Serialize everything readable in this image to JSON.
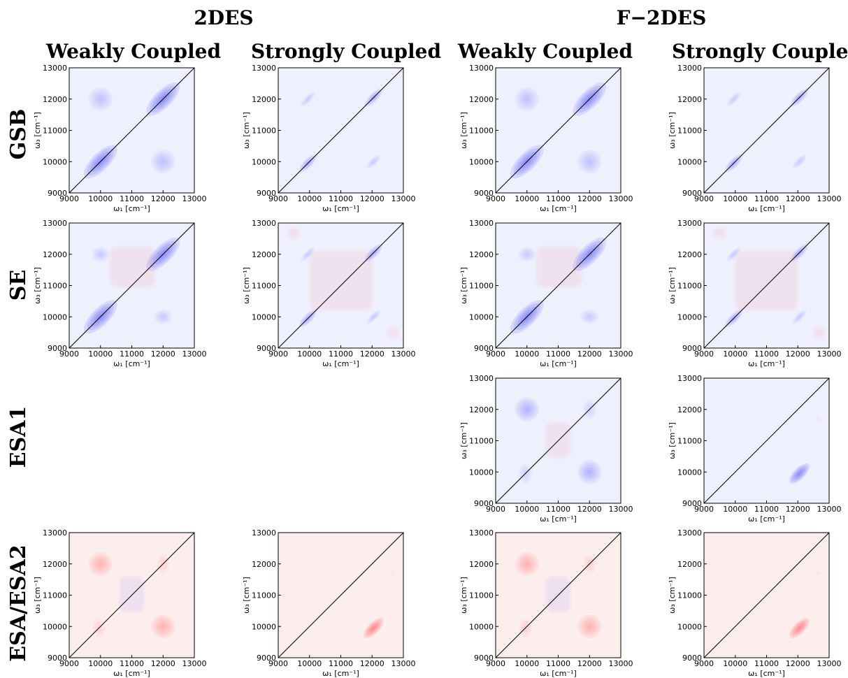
{
  "figure": {
    "group_titles": [
      "2DES",
      "F−2DES"
    ],
    "col_titles": [
      "Weakly Coupled",
      "Strongly Coupled",
      "Weakly Coupled",
      "Strongly Coupled"
    ],
    "row_titles": [
      "GSB",
      "SE",
      "ESA1",
      "ESA/ESA2"
    ],
    "colors": {
      "negative": "#3333ff",
      "positive": "#ff3333",
      "background_negative": "#eef0fd",
      "background_positive": "#fdeeee",
      "diagonal": "#000000"
    }
  },
  "chart_data": [
    {
      "type": "heatmap",
      "panel": "2DES Weakly Coupled GSB",
      "xlabel": "ω₁ [cm⁻¹]",
      "ylabel": "ω₃ [cm⁻¹]",
      "xlim": [
        9000,
        13000
      ],
      "ylim": [
        9000,
        13000
      ],
      "xticks": [
        9000,
        10000,
        11000,
        12000,
        13000
      ],
      "yticks": [
        9000,
        10000,
        11000,
        12000,
        13000
      ],
      "sign": "negative",
      "diagonal": true,
      "peaks": [
        {
          "x": 10000,
          "y": 10000,
          "rx": 700,
          "ry": 280,
          "angle": 45,
          "amp": 1.0
        },
        {
          "x": 12000,
          "y": 12000,
          "rx": 700,
          "ry": 280,
          "angle": 45,
          "amp": 1.0
        },
        {
          "x": 10000,
          "y": 12000,
          "rx": 380,
          "ry": 380,
          "angle": 0,
          "amp": 0.35
        },
        {
          "x": 12000,
          "y": 10000,
          "rx": 380,
          "ry": 380,
          "angle": 0,
          "amp": 0.35
        }
      ]
    },
    {
      "type": "heatmap",
      "panel": "2DES Strongly Coupled GSB",
      "xlabel": "ω₁ [cm⁻¹]",
      "ylabel": "ω₃ [cm⁻¹]",
      "xlim": [
        9000,
        13000
      ],
      "ylim": [
        9000,
        13000
      ],
      "xticks": [
        9000,
        10000,
        11000,
        12000,
        13000
      ],
      "yticks": [
        9000,
        10000,
        11000,
        12000,
        13000
      ],
      "sign": "negative",
      "diagonal": true,
      "peaks": [
        {
          "x": 9950,
          "y": 9950,
          "rx": 380,
          "ry": 140,
          "angle": 45,
          "amp": 0.6
        },
        {
          "x": 12050,
          "y": 12050,
          "rx": 380,
          "ry": 140,
          "angle": 45,
          "amp": 0.6
        },
        {
          "x": 9950,
          "y": 12000,
          "rx": 300,
          "ry": 110,
          "angle": 45,
          "amp": 0.3
        },
        {
          "x": 12050,
          "y": 10000,
          "rx": 300,
          "ry": 110,
          "angle": 45,
          "amp": 0.3
        }
      ]
    },
    {
      "type": "heatmap",
      "panel": "F-2DES Weakly Coupled GSB",
      "xlabel": "ω₁ [cm⁻¹]",
      "ylabel": "ω₃ [cm⁻¹]",
      "xlim": [
        9000,
        13000
      ],
      "ylim": [
        9000,
        13000
      ],
      "xticks": [
        9000,
        10000,
        11000,
        12000,
        13000
      ],
      "yticks": [
        9000,
        10000,
        11000,
        12000,
        13000
      ],
      "sign": "negative",
      "diagonal": true,
      "peaks": [
        {
          "x": 10000,
          "y": 10000,
          "rx": 700,
          "ry": 280,
          "angle": 45,
          "amp": 1.0
        },
        {
          "x": 12000,
          "y": 12000,
          "rx": 700,
          "ry": 280,
          "angle": 45,
          "amp": 1.0
        },
        {
          "x": 10000,
          "y": 12000,
          "rx": 380,
          "ry": 380,
          "angle": 0,
          "amp": 0.35
        },
        {
          "x": 12000,
          "y": 10000,
          "rx": 380,
          "ry": 380,
          "angle": 0,
          "amp": 0.35
        }
      ]
    },
    {
      "type": "heatmap",
      "panel": "F-2DES Strongly Coupled GSB",
      "xlabel": "ω₁ [cm⁻¹]",
      "ylabel": "ω₃ [cm⁻¹]",
      "xlim": [
        9000,
        13000
      ],
      "ylim": [
        9000,
        13000
      ],
      "xticks": [
        9000,
        10000,
        11000,
        12000,
        13000
      ],
      "yticks": [
        9000,
        10000,
        11000,
        12000,
        13000
      ],
      "sign": "negative",
      "diagonal": true,
      "peaks": [
        {
          "x": 9950,
          "y": 9950,
          "rx": 380,
          "ry": 140,
          "angle": 45,
          "amp": 0.6
        },
        {
          "x": 12050,
          "y": 12050,
          "rx": 380,
          "ry": 140,
          "angle": 45,
          "amp": 0.6
        },
        {
          "x": 9950,
          "y": 12000,
          "rx": 300,
          "ry": 110,
          "angle": 45,
          "amp": 0.3
        },
        {
          "x": 12050,
          "y": 10000,
          "rx": 300,
          "ry": 110,
          "angle": 45,
          "amp": 0.3
        }
      ]
    },
    {
      "type": "heatmap",
      "panel": "2DES Weakly Coupled SE",
      "xlabel": "ω₁ [cm⁻¹]",
      "ylabel": "ω₃ [cm⁻¹]",
      "xlim": [
        9000,
        13000
      ],
      "ylim": [
        9000,
        13000
      ],
      "xticks": [
        9000,
        10000,
        11000,
        12000,
        13000
      ],
      "yticks": [
        9000,
        10000,
        11000,
        12000,
        13000
      ],
      "sign": "negative",
      "diagonal": true,
      "peaks": [
        {
          "x": 10000,
          "y": 10000,
          "rx": 700,
          "ry": 280,
          "angle": 45,
          "amp": 1.0
        },
        {
          "x": 12000,
          "y": 12000,
          "rx": 700,
          "ry": 280,
          "angle": 45,
          "amp": 1.0
        },
        {
          "x": 10000,
          "y": 12000,
          "rx": 280,
          "ry": 230,
          "angle": 0,
          "amp": 0.3
        },
        {
          "x": 12000,
          "y": 10000,
          "rx": 280,
          "ry": 230,
          "angle": 0,
          "amp": 0.3
        }
      ],
      "positive_regions": [
        {
          "x": 10300,
          "y": 10950,
          "w": 1450,
          "h": 1300,
          "amp": 0.12
        }
      ]
    },
    {
      "type": "heatmap",
      "panel": "2DES Strongly Coupled SE",
      "xlabel": "ω₁ [cm⁻¹]",
      "ylabel": "ω₃ [cm⁻¹]",
      "xlim": [
        9000,
        13000
      ],
      "ylim": [
        9000,
        13000
      ],
      "xticks": [
        9000,
        10000,
        11000,
        12000,
        13000
      ],
      "yticks": [
        9000,
        10000,
        11000,
        12000,
        13000
      ],
      "sign": "negative",
      "diagonal": true,
      "peaks": [
        {
          "x": 9950,
          "y": 9950,
          "rx": 380,
          "ry": 140,
          "angle": 45,
          "amp": 0.6
        },
        {
          "x": 12050,
          "y": 12050,
          "rx": 380,
          "ry": 140,
          "angle": 45,
          "amp": 0.6
        },
        {
          "x": 9950,
          "y": 12000,
          "rx": 300,
          "ry": 110,
          "angle": 45,
          "amp": 0.3
        },
        {
          "x": 12050,
          "y": 10000,
          "rx": 300,
          "ry": 110,
          "angle": 45,
          "amp": 0.3
        }
      ],
      "positive_regions": [
        {
          "x": 10000,
          "y": 10200,
          "w": 2000,
          "h": 1900,
          "amp": 0.12
        },
        {
          "x": 9300,
          "y": 12500,
          "w": 400,
          "h": 350,
          "amp": 0.12
        },
        {
          "x": 12500,
          "y": 9300,
          "w": 350,
          "h": 400,
          "amp": 0.12
        }
      ]
    },
    {
      "type": "heatmap",
      "panel": "F-2DES Weakly Coupled SE",
      "xlabel": "ω₁ [cm⁻¹]",
      "ylabel": "ω₃ [cm⁻¹]",
      "xlim": [
        9000,
        13000
      ],
      "ylim": [
        9000,
        13000
      ],
      "xticks": [
        9000,
        10000,
        11000,
        12000,
        13000
      ],
      "yticks": [
        9000,
        10000,
        11000,
        12000,
        13000
      ],
      "sign": "negative",
      "diagonal": true,
      "peaks": [
        {
          "x": 10000,
          "y": 10000,
          "rx": 700,
          "ry": 280,
          "angle": 45,
          "amp": 1.0
        },
        {
          "x": 12000,
          "y": 12000,
          "rx": 700,
          "ry": 280,
          "angle": 45,
          "amp": 1.0
        },
        {
          "x": 10000,
          "y": 12000,
          "rx": 280,
          "ry": 230,
          "angle": 0,
          "amp": 0.3
        },
        {
          "x": 12000,
          "y": 10000,
          "rx": 280,
          "ry": 230,
          "angle": 0,
          "amp": 0.3
        }
      ],
      "positive_regions": [
        {
          "x": 10300,
          "y": 10950,
          "w": 1450,
          "h": 1300,
          "amp": 0.12
        }
      ]
    },
    {
      "type": "heatmap",
      "panel": "F-2DES Strongly Coupled SE",
      "xlabel": "ω₁ [cm⁻¹]",
      "ylabel": "ω₃ [cm⁻¹]",
      "xlim": [
        9000,
        13000
      ],
      "ylim": [
        9000,
        13000
      ],
      "xticks": [
        9000,
        10000,
        11000,
        12000,
        13000
      ],
      "yticks": [
        9000,
        10000,
        11000,
        12000,
        13000
      ],
      "sign": "negative",
      "diagonal": true,
      "peaks": [
        {
          "x": 9950,
          "y": 9950,
          "rx": 380,
          "ry": 140,
          "angle": 45,
          "amp": 0.6
        },
        {
          "x": 12050,
          "y": 12050,
          "rx": 380,
          "ry": 140,
          "angle": 45,
          "amp": 0.6
        },
        {
          "x": 9950,
          "y": 12000,
          "rx": 300,
          "ry": 110,
          "angle": 45,
          "amp": 0.3
        },
        {
          "x": 12050,
          "y": 10000,
          "rx": 300,
          "ry": 110,
          "angle": 45,
          "amp": 0.3
        }
      ],
      "positive_regions": [
        {
          "x": 10000,
          "y": 10200,
          "w": 2000,
          "h": 1900,
          "amp": 0.12
        },
        {
          "x": 9300,
          "y": 12500,
          "w": 400,
          "h": 350,
          "amp": 0.12
        },
        {
          "x": 12500,
          "y": 9300,
          "w": 350,
          "h": 400,
          "amp": 0.12
        }
      ]
    },
    {
      "type": "heatmap",
      "panel": "F-2DES Weakly Coupled ESA1",
      "xlabel": "ω₁ [cm⁻¹]",
      "ylabel": "ω₃ [cm⁻¹]",
      "xlim": [
        9000,
        13000
      ],
      "ylim": [
        9000,
        13000
      ],
      "xticks": [
        9000,
        10000,
        11000,
        12000,
        13000
      ],
      "yticks": [
        9000,
        10000,
        11000,
        12000,
        13000
      ],
      "sign": "negative",
      "diagonal": true,
      "peaks": [
        {
          "x": 10000,
          "y": 12000,
          "rx": 380,
          "ry": 380,
          "angle": 0,
          "amp": 0.55
        },
        {
          "x": 12000,
          "y": 10000,
          "rx": 380,
          "ry": 380,
          "angle": 0,
          "amp": 0.55
        },
        {
          "x": 9950,
          "y": 9950,
          "rx": 220,
          "ry": 320,
          "angle": 0,
          "amp": 0.25
        },
        {
          "x": 12000,
          "y": 12000,
          "rx": 220,
          "ry": 320,
          "angle": 0,
          "amp": 0.25
        }
      ],
      "positive_regions": [
        {
          "x": 10600,
          "y": 10450,
          "w": 800,
          "h": 1150,
          "amp": 0.12
        }
      ]
    },
    {
      "type": "heatmap",
      "panel": "F-2DES Strongly Coupled ESA1",
      "xlabel": "ω₁ [cm⁻¹]",
      "ylabel": "ω₃ [cm⁻¹]",
      "xlim": [
        9000,
        13000
      ],
      "ylim": [
        9000,
        13000
      ],
      "xticks": [
        9000,
        10000,
        11000,
        12000,
        13000
      ],
      "yticks": [
        9000,
        10000,
        11000,
        12000,
        13000
      ],
      "sign": "negative",
      "diagonal": true,
      "peaks": [
        {
          "x": 12050,
          "y": 9950,
          "rx": 420,
          "ry": 180,
          "angle": 45,
          "amp": 1.0
        },
        {
          "x": 12650,
          "y": 11700,
          "rx": 80,
          "ry": 100,
          "angle": 0,
          "amp": -0.1
        }
      ]
    },
    {
      "type": "heatmap",
      "panel": "2DES Weakly Coupled ESA/ESA2",
      "xlabel": "ω₁ [cm⁻¹]",
      "ylabel": "ω₃ [cm⁻¹]",
      "xlim": [
        9000,
        13000
      ],
      "ylim": [
        9000,
        13000
      ],
      "xticks": [
        9000,
        10000,
        11000,
        12000,
        13000
      ],
      "yticks": [
        9000,
        10000,
        11000,
        12000,
        13000
      ],
      "sign": "positive",
      "diagonal": true,
      "peaks": [
        {
          "x": 10000,
          "y": 12000,
          "rx": 380,
          "ry": 380,
          "angle": 0,
          "amp": 0.55
        },
        {
          "x": 12000,
          "y": 10000,
          "rx": 380,
          "ry": 380,
          "angle": 0,
          "amp": 0.55
        },
        {
          "x": 9950,
          "y": 9950,
          "rx": 220,
          "ry": 320,
          "angle": 0,
          "amp": 0.25
        },
        {
          "x": 12000,
          "y": 12000,
          "rx": 220,
          "ry": 320,
          "angle": 0,
          "amp": 0.25
        }
      ],
      "negative_regions": [
        {
          "x": 10600,
          "y": 10450,
          "w": 800,
          "h": 1150,
          "amp": 0.12
        }
      ]
    },
    {
      "type": "heatmap",
      "panel": "2DES Strongly Coupled ESA/ESA2",
      "xlabel": "ω₁ [cm⁻¹]",
      "ylabel": "ω₃ [cm⁻¹]",
      "xlim": [
        9000,
        13000
      ],
      "ylim": [
        9000,
        13000
      ],
      "xticks": [
        9000,
        10000,
        11000,
        12000,
        13000
      ],
      "yticks": [
        9000,
        10000,
        11000,
        12000,
        13000
      ],
      "sign": "positive",
      "diagonal": true,
      "peaks": [
        {
          "x": 12050,
          "y": 9950,
          "rx": 420,
          "ry": 180,
          "angle": 45,
          "amp": 1.0
        },
        {
          "x": 12650,
          "y": 11700,
          "rx": 80,
          "ry": 100,
          "angle": 0,
          "amp": -0.1
        }
      ]
    },
    {
      "type": "heatmap",
      "panel": "F-2DES Weakly Coupled ESA/ESA2",
      "xlabel": "ω₁ [cm⁻¹]",
      "ylabel": "ω₃ [cm⁻¹]",
      "xlim": [
        9000,
        13000
      ],
      "ylim": [
        9000,
        13000
      ],
      "xticks": [
        9000,
        10000,
        11000,
        12000,
        13000
      ],
      "yticks": [
        9000,
        10000,
        11000,
        12000,
        13000
      ],
      "sign": "positive",
      "diagonal": true,
      "peaks": [
        {
          "x": 10000,
          "y": 12000,
          "rx": 380,
          "ry": 380,
          "angle": 0,
          "amp": 0.55
        },
        {
          "x": 12000,
          "y": 10000,
          "rx": 380,
          "ry": 380,
          "angle": 0,
          "amp": 0.55
        },
        {
          "x": 9950,
          "y": 9950,
          "rx": 220,
          "ry": 320,
          "angle": 0,
          "amp": 0.25
        },
        {
          "x": 12000,
          "y": 12000,
          "rx": 220,
          "ry": 320,
          "angle": 0,
          "amp": 0.25
        }
      ],
      "negative_regions": [
        {
          "x": 10600,
          "y": 10450,
          "w": 800,
          "h": 1150,
          "amp": 0.12
        }
      ]
    },
    {
      "type": "heatmap",
      "panel": "F-2DES Strongly Coupled ESA/ESA2",
      "xlabel": "ω₁ [cm⁻¹]",
      "ylabel": "ω₃ [cm⁻¹]",
      "xlim": [
        9000,
        13000
      ],
      "ylim": [
        9000,
        13000
      ],
      "xticks": [
        9000,
        10000,
        11000,
        12000,
        13000
      ],
      "yticks": [
        9000,
        10000,
        11000,
        12000,
        13000
      ],
      "sign": "positive",
      "diagonal": true,
      "peaks": [
        {
          "x": 12050,
          "y": 9950,
          "rx": 420,
          "ry": 180,
          "angle": 45,
          "amp": 1.0
        },
        {
          "x": 12650,
          "y": 11700,
          "rx": 80,
          "ry": 100,
          "angle": 0,
          "amp": -0.1
        }
      ]
    }
  ]
}
